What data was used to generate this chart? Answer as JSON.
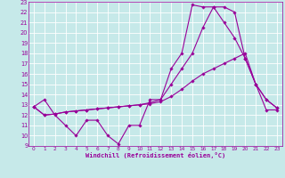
{
  "xlabel": "Windchill (Refroidissement éolien,°C)",
  "xlim": [
    -0.5,
    23.5
  ],
  "ylim": [
    9,
    23
  ],
  "xticks": [
    0,
    1,
    2,
    3,
    4,
    5,
    6,
    7,
    8,
    9,
    10,
    11,
    12,
    13,
    14,
    15,
    16,
    17,
    18,
    19,
    20,
    21,
    22,
    23
  ],
  "yticks": [
    9,
    10,
    11,
    12,
    13,
    14,
    15,
    16,
    17,
    18,
    19,
    20,
    21,
    22,
    23
  ],
  "bg_color": "#c6e9e9",
  "grid_color": "#ffffff",
  "line_color": "#990099",
  "line1_x": [
    0,
    1,
    2,
    3,
    4,
    5,
    6,
    7,
    8,
    9,
    10,
    11,
    12,
    13,
    14,
    15,
    16,
    17,
    18,
    19,
    20,
    21,
    22,
    23
  ],
  "line1_y": [
    12.8,
    13.5,
    12.0,
    11.0,
    10.0,
    11.5,
    11.5,
    10.0,
    9.2,
    11.0,
    11.0,
    13.5,
    13.5,
    16.5,
    18.0,
    22.7,
    22.5,
    22.5,
    21.0,
    19.5,
    17.5,
    15.0,
    13.5,
    12.7
  ],
  "line2_x": [
    0,
    1,
    2,
    3,
    4,
    5,
    6,
    7,
    8,
    9,
    10,
    11,
    12,
    13,
    14,
    15,
    16,
    17,
    18,
    19,
    20,
    21,
    22,
    23
  ],
  "line2_y": [
    12.8,
    12.0,
    12.1,
    12.3,
    12.4,
    12.5,
    12.6,
    12.7,
    12.8,
    12.9,
    13.0,
    13.1,
    13.3,
    13.8,
    14.5,
    15.3,
    16.0,
    16.5,
    17.0,
    17.5,
    18.0,
    15.0,
    12.5,
    12.5
  ],
  "line3_x": [
    0,
    1,
    2,
    3,
    4,
    5,
    6,
    7,
    8,
    9,
    10,
    11,
    12,
    13,
    14,
    15,
    16,
    17,
    18,
    19,
    20,
    21,
    22,
    23
  ],
  "line3_y": [
    12.8,
    12.0,
    12.1,
    12.3,
    12.4,
    12.5,
    12.6,
    12.7,
    12.8,
    12.9,
    13.0,
    13.2,
    13.5,
    15.0,
    16.5,
    18.0,
    20.5,
    22.5,
    22.5,
    22.0,
    17.5,
    15.0,
    13.5,
    12.7
  ]
}
